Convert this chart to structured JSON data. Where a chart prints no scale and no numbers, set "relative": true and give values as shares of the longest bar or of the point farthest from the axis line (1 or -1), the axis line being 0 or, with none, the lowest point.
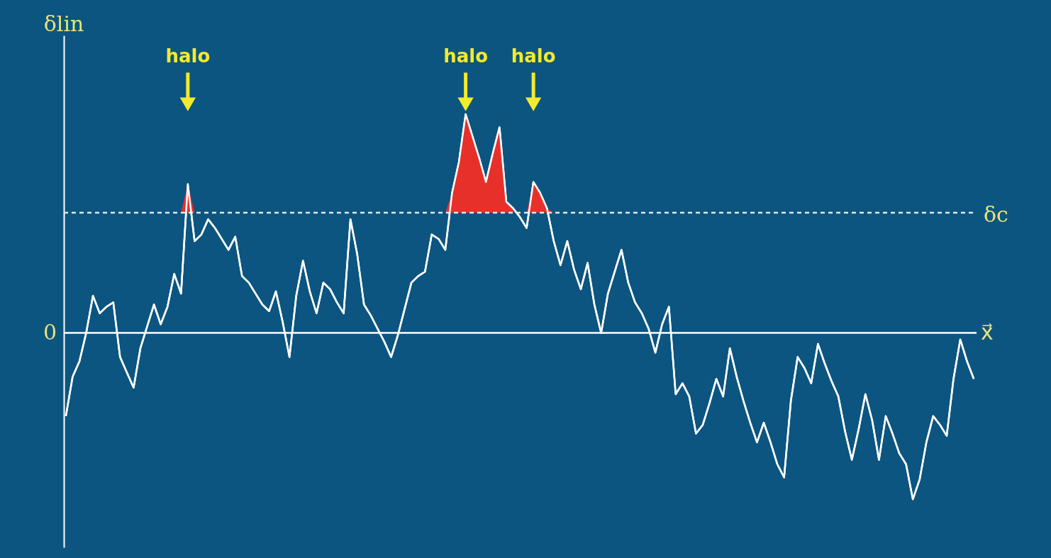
{
  "chart_data": {
    "type": "line",
    "xlabel": "x⃗",
    "ylabel": "δlin",
    "relative": true,
    "tick_labels": false,
    "grid": false,
    "line_style": "solid",
    "categories": [
      null,
      null,
      null,
      null,
      null,
      null,
      null,
      null,
      null,
      null,
      null,
      null,
      null,
      null,
      null,
      null,
      null,
      null,
      null,
      null,
      null,
      null,
      null,
      null,
      null,
      null,
      null,
      null,
      null,
      null,
      null,
      null,
      null,
      null,
      null,
      null,
      null,
      null,
      null,
      null,
      null,
      null,
      null,
      null,
      null,
      null,
      null,
      null,
      null,
      null,
      null,
      null,
      null,
      null,
      null,
      null,
      null,
      null,
      null,
      null,
      null,
      null,
      null,
      null,
      null,
      null,
      null,
      null,
      null,
      null,
      null,
      null,
      null,
      null,
      null,
      null,
      null,
      null,
      null,
      null,
      null,
      null,
      null,
      null,
      null,
      null,
      null,
      null,
      null,
      null,
      null,
      null,
      null,
      null,
      null,
      null,
      null,
      null,
      null,
      null,
      null,
      null,
      null,
      null,
      null,
      null,
      null,
      null,
      null,
      null,
      null,
      null,
      null,
      null,
      null,
      null,
      null,
      null,
      null,
      null,
      null,
      null,
      null,
      null,
      null,
      null,
      null,
      null,
      null,
      null,
      null,
      null,
      null,
      null,
      null
    ],
    "series": [
      {
        "color": "#ffffff",
        "values": [
          -0.38,
          -0.2,
          -0.13,
          0.0,
          0.17,
          0.09,
          0.12,
          0.14,
          -0.11,
          -0.18,
          -0.25,
          -0.07,
          0.03,
          0.13,
          0.04,
          0.12,
          0.27,
          0.18,
          0.68,
          0.42,
          0.45,
          0.52,
          0.48,
          0.43,
          0.38,
          0.44,
          0.26,
          0.23,
          0.18,
          0.13,
          0.1,
          0.19,
          0.05,
          -0.11,
          0.17,
          0.33,
          0.19,
          0.09,
          0.23,
          0.2,
          0.14,
          0.09,
          0.52,
          0.36,
          0.13,
          0.08,
          0.02,
          -0.04,
          -0.11,
          -0.01,
          0.11,
          0.23,
          0.26,
          0.28,
          0.45,
          0.43,
          0.38,
          0.64,
          0.78,
          1.0,
          0.9,
          0.8,
          0.69,
          0.82,
          0.94,
          0.6,
          0.57,
          0.53,
          0.48,
          0.69,
          0.64,
          0.57,
          0.42,
          0.31,
          0.42,
          0.29,
          0.2,
          0.32,
          0.13,
          0.0,
          0.18,
          0.28,
          0.38,
          0.23,
          0.14,
          0.09,
          0.02,
          -0.09,
          0.04,
          0.12,
          -0.28,
          -0.23,
          -0.29,
          -0.46,
          -0.42,
          -0.32,
          -0.21,
          -0.29,
          -0.07,
          -0.2,
          -0.31,
          -0.41,
          -0.5,
          -0.41,
          -0.5,
          -0.6,
          -0.66,
          -0.31,
          -0.11,
          -0.16,
          -0.23,
          -0.05,
          -0.14,
          -0.22,
          -0.29,
          -0.45,
          -0.58,
          -0.44,
          -0.28,
          -0.4,
          -0.58,
          -0.38,
          -0.46,
          -0.55,
          -0.6,
          -0.76,
          -0.67,
          -0.5,
          -0.38,
          -0.42,
          -0.47,
          -0.21,
          -0.03,
          -0.13,
          -0.21
        ],
        "lower": [
          null,
          null,
          null,
          null,
          null,
          null,
          null,
          null,
          null,
          null,
          null,
          null,
          null,
          null,
          null,
          null,
          null,
          0.55,
          0.55,
          0.55,
          null,
          null,
          null,
          null,
          null,
          null,
          null,
          null,
          null,
          null,
          null,
          null,
          null,
          null,
          null,
          null,
          null,
          null,
          null,
          null,
          null,
          null,
          null,
          null,
          null,
          null,
          null,
          null,
          null,
          null,
          null,
          null,
          null,
          null,
          null,
          null,
          0.55,
          0.55,
          0.55,
          0.55,
          0.55,
          0.55,
          0.55,
          0.55,
          0.55,
          0.55,
          0.55,
          null,
          0.55,
          0.55,
          0.55,
          0.55,
          0.55,
          null,
          null,
          null,
          null,
          null,
          null,
          null,
          null,
          null,
          null,
          null,
          null,
          null,
          null,
          null,
          null,
          null,
          null,
          null,
          null,
          null,
          null,
          null,
          null,
          null,
          null,
          null,
          null,
          null,
          null,
          null,
          null,
          null,
          null,
          null,
          null,
          null,
          null,
          null,
          null,
          null,
          null,
          null,
          null,
          null,
          null,
          null,
          null,
          null,
          null,
          null,
          null,
          null,
          null,
          null,
          null,
          null,
          null,
          null,
          null,
          null,
          null
        ],
        "upper": [
          null,
          null,
          null,
          null,
          null,
          null,
          null,
          null,
          null,
          null,
          null,
          null,
          null,
          null,
          null,
          null,
          null,
          0.55,
          0.68,
          0.55,
          null,
          null,
          null,
          null,
          null,
          null,
          null,
          null,
          null,
          null,
          null,
          null,
          null,
          null,
          null,
          null,
          null,
          null,
          null,
          null,
          null,
          null,
          null,
          null,
          null,
          null,
          null,
          null,
          null,
          null,
          null,
          null,
          null,
          null,
          null,
          null,
          0.55,
          0.64,
          0.78,
          1.0,
          0.9,
          0.8,
          0.69,
          0.82,
          0.94,
          0.6,
          0.57,
          null,
          0.55,
          0.69,
          0.64,
          0.57,
          0.55,
          null,
          null,
          null,
          null,
          null,
          null,
          null,
          null,
          null,
          null,
          null,
          null,
          null,
          null,
          null,
          null,
          null,
          null,
          null,
          null,
          null,
          null,
          null,
          null,
          null,
          null,
          null,
          null,
          null,
          null,
          null,
          null,
          null,
          null,
          null,
          null,
          null,
          null,
          null,
          null,
          null,
          null,
          null,
          null,
          null,
          null,
          null,
          null,
          null,
          null,
          null,
          null,
          null,
          null,
          null,
          null,
          null,
          null,
          null,
          null,
          null,
          null
        ]
      }
    ],
    "ref_lines": [
      {
        "axis": "y",
        "value": 0,
        "label": "0",
        "color": "#ffffff",
        "line_style": "solid"
      },
      {
        "axis": "y",
        "value": 0.55,
        "label": "δc",
        "color": "#dde8f2",
        "line_style": "dashed"
      }
    ],
    "annotations": [
      "halo",
      "halo",
      "halo"
    ]
  }
}
